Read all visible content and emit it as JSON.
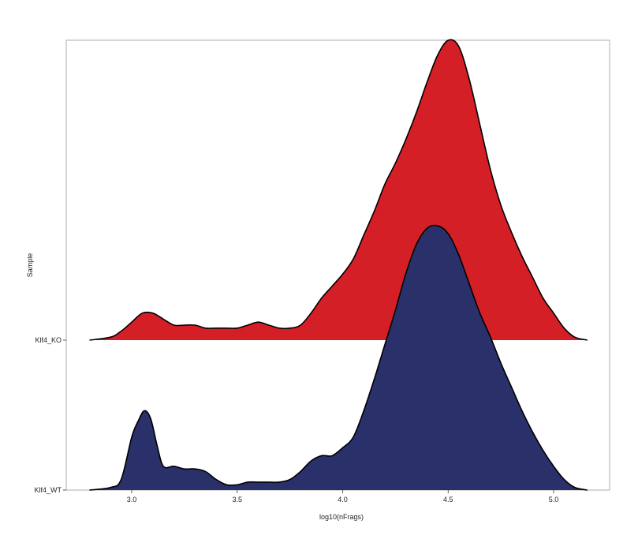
{
  "chart_data": {
    "type": "ridgeline",
    "title": "",
    "xlabel": "log10(nFrags)",
    "ylabel": "Sample",
    "xlim": [
      2.79,
      5.27
    ],
    "xticks": [
      3.0,
      3.5,
      4.0,
      4.5,
      5.0
    ],
    "xtick_labels": [
      "3.0",
      "3.5",
      "4.0",
      "4.5",
      "5.0"
    ],
    "grid": false,
    "legend": "none",
    "series": [
      {
        "name": "Klf4_WT",
        "color": "#29306a",
        "x": [
          2.8,
          2.9,
          2.95,
          3.0,
          3.03,
          3.06,
          3.09,
          3.12,
          3.15,
          3.2,
          3.25,
          3.3,
          3.35,
          3.4,
          3.45,
          3.5,
          3.55,
          3.6,
          3.65,
          3.7,
          3.75,
          3.8,
          3.85,
          3.9,
          3.95,
          4.0,
          4.05,
          4.1,
          4.15,
          4.2,
          4.25,
          4.3,
          4.35,
          4.4,
          4.45,
          4.5,
          4.55,
          4.6,
          4.65,
          4.7,
          4.75,
          4.8,
          4.85,
          4.9,
          4.95,
          5.0,
          5.05,
          5.1,
          5.16
        ],
        "y": [
          0.0,
          0.01,
          0.04,
          0.2,
          0.26,
          0.3,
          0.27,
          0.17,
          0.09,
          0.09,
          0.08,
          0.08,
          0.07,
          0.04,
          0.02,
          0.02,
          0.03,
          0.03,
          0.03,
          0.03,
          0.04,
          0.07,
          0.11,
          0.13,
          0.13,
          0.16,
          0.2,
          0.3,
          0.42,
          0.55,
          0.68,
          0.82,
          0.93,
          0.99,
          1.0,
          0.97,
          0.89,
          0.78,
          0.67,
          0.58,
          0.48,
          0.39,
          0.3,
          0.22,
          0.15,
          0.09,
          0.04,
          0.01,
          0.0
        ]
      },
      {
        "name": "Klf4_KO",
        "color": "#d51f26",
        "x": [
          2.8,
          2.9,
          2.95,
          3.0,
          3.05,
          3.1,
          3.15,
          3.2,
          3.25,
          3.3,
          3.35,
          3.4,
          3.45,
          3.5,
          3.55,
          3.6,
          3.65,
          3.7,
          3.75,
          3.8,
          3.85,
          3.9,
          3.95,
          4.0,
          4.05,
          4.1,
          4.15,
          4.2,
          4.25,
          4.3,
          4.35,
          4.4,
          4.45,
          4.5,
          4.55,
          4.6,
          4.65,
          4.7,
          4.75,
          4.8,
          4.85,
          4.9,
          4.95,
          5.0,
          5.05,
          5.1,
          5.16
        ],
        "y": [
          0.0,
          0.01,
          0.03,
          0.06,
          0.09,
          0.09,
          0.07,
          0.05,
          0.05,
          0.05,
          0.04,
          0.04,
          0.04,
          0.04,
          0.05,
          0.06,
          0.05,
          0.04,
          0.04,
          0.05,
          0.09,
          0.14,
          0.18,
          0.22,
          0.27,
          0.35,
          0.43,
          0.52,
          0.59,
          0.67,
          0.76,
          0.86,
          0.95,
          1.0,
          0.98,
          0.87,
          0.72,
          0.57,
          0.45,
          0.36,
          0.28,
          0.21,
          0.14,
          0.09,
          0.04,
          0.01,
          0.0
        ]
      }
    ],
    "category_labels": [
      "Klf4_WT",
      "Klf4_KO"
    ]
  }
}
